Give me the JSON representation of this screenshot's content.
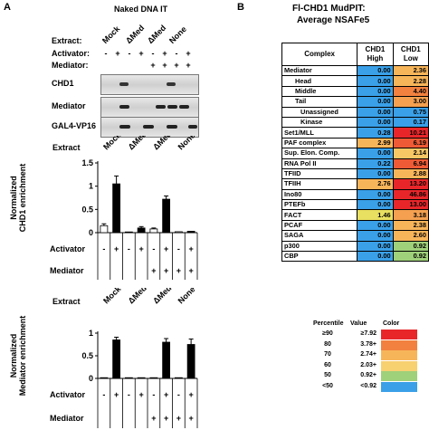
{
  "panel_a": {
    "letter": "A",
    "title": "Naked DNA IT",
    "row_labels": {
      "extract": "Extract:",
      "activator": "Activator:",
      "mediator": "Mediator:"
    },
    "extract_lanes": [
      "Mock",
      "ΔMed",
      "ΔMed",
      "None"
    ],
    "activator_signs": [
      "-",
      "+",
      "-",
      "+",
      "-",
      "+",
      "-",
      "+"
    ],
    "mediator_signs": [
      "",
      "",
      "",
      "",
      "+",
      "+",
      "+",
      "+"
    ],
    "blots": [
      {
        "label": "CHD1"
      },
      {
        "label": "Mediator"
      },
      {
        "label": "GAL4-VP16"
      }
    ]
  },
  "chart_data": [
    {
      "type": "bar",
      "title": "",
      "ylabel": "Normalized CHD1 enrichment",
      "ylim": [
        0,
        1.5
      ],
      "yticks": [
        "0",
        "0.5",
        "1",
        "1.5"
      ],
      "extract_label": "Extract",
      "extract_lanes": [
        "Mock",
        "ΔMed",
        "ΔMed",
        "None"
      ],
      "activator_label": "Activator",
      "mediator_label": "Mediator",
      "activator": [
        "-",
        "+",
        "-",
        "+",
        "-",
        "+",
        "-",
        "+"
      ],
      "mediator": [
        "",
        "",
        "",
        "",
        "+",
        "+",
        "+",
        "+"
      ],
      "values": [
        0.15,
        1.05,
        0.0,
        0.1,
        0.08,
        0.72,
        0.02,
        0.03
      ],
      "errors": [
        0.04,
        0.17,
        0.0,
        0.03,
        0.02,
        0.07,
        0.0,
        0.0
      ],
      "fill": [
        "white",
        "black",
        "white",
        "black",
        "white",
        "black",
        "white",
        "black"
      ]
    },
    {
      "type": "bar",
      "title": "",
      "ylabel": "Normalized Mediator enrichment",
      "ylim": [
        0,
        1.0
      ],
      "yticks": [
        "0",
        "0.5",
        "1"
      ],
      "extract_label": "Extract",
      "extract_lanes": [
        "Mock",
        "ΔMed",
        "ΔMed",
        "None"
      ],
      "activator_label": "Activator",
      "mediator_label": "Mediator",
      "activator": [
        "-",
        "+",
        "-",
        "+",
        "-",
        "+",
        "-",
        "+"
      ],
      "mediator": [
        "",
        "",
        "",
        "",
        "+",
        "+",
        "+",
        "+"
      ],
      "values": [
        0.0,
        0.85,
        0.0,
        0.0,
        0.0,
        0.8,
        0.0,
        0.75
      ],
      "errors": [
        0.0,
        0.06,
        0.0,
        0.0,
        0.0,
        0.08,
        0.0,
        0.12
      ],
      "fill": [
        "white",
        "black",
        "white",
        "black",
        "white",
        "black",
        "white",
        "black"
      ]
    }
  ],
  "panel_b": {
    "letter": "B",
    "title_line1": "Fl-CHD1 MudPIT:",
    "title_line2": "Average NSAFe5",
    "header": {
      "complex": "Complex",
      "high": "CHD1\nHigh",
      "low": "CHD1\nLow"
    },
    "rows": [
      {
        "name": "Mediator",
        "indent": 0,
        "high": "0.00",
        "low": "2.36",
        "high_color": "#3aa0e8",
        "low_color": "#f7b55a"
      },
      {
        "name": "Head",
        "indent": 1,
        "high": "0.00",
        "low": "2.28",
        "high_color": "#3aa0e8",
        "low_color": "#f7b55a"
      },
      {
        "name": "Middle",
        "indent": 1,
        "high": "0.00",
        "low": "4.40",
        "high_color": "#3aa0e8",
        "low_color": "#f2813f"
      },
      {
        "name": "Tail",
        "indent": 1,
        "high": "0.00",
        "low": "3.00",
        "high_color": "#3aa0e8",
        "low_color": "#f4a050"
      },
      {
        "name": "Unassigned",
        "indent": 2,
        "high": "0.00",
        "low": "0.75",
        "high_color": "#3aa0e8",
        "low_color": "#3aa0e8"
      },
      {
        "name": "Kinase",
        "indent": 2,
        "high": "0.00",
        "low": "0.17",
        "high_color": "#3aa0e8",
        "low_color": "#3aa0e8"
      },
      {
        "name": "Set1/MLL",
        "indent": 0,
        "high": "0.28",
        "low": "10.21",
        "high_color": "#3aa0e8",
        "low_color": "#e8262a"
      },
      {
        "name": "PAF complex",
        "indent": 0,
        "high": "2.99",
        "low": "6.19",
        "high_color": "#f7b55a",
        "low_color": "#ee5a35"
      },
      {
        "name": "Sup. Elon. Comp.",
        "indent": 0,
        "high": "0.00",
        "low": "2.14",
        "high_color": "#3aa0e8",
        "low_color": "#f7c765"
      },
      {
        "name": "RNA Pol II",
        "indent": 0,
        "high": "0.22",
        "low": "6.94",
        "high_color": "#3aa0e8",
        "low_color": "#ee5a35"
      },
      {
        "name": "TFIID",
        "indent": 0,
        "high": "0.00",
        "low": "2.88",
        "high_color": "#3aa0e8",
        "low_color": "#f7b55a"
      },
      {
        "name": "TFIIH",
        "indent": 0,
        "high": "2.76",
        "low": "13.20",
        "high_color": "#f7b55a",
        "low_color": "#e8262a"
      },
      {
        "name": "Ino80",
        "indent": 0,
        "high": "0.00",
        "low": "46.86",
        "high_color": "#3aa0e8",
        "low_color": "#e8262a"
      },
      {
        "name": "PTEFb",
        "indent": 0,
        "high": "0.00",
        "low": "13.00",
        "high_color": "#3aa0e8",
        "low_color": "#e8262a"
      },
      {
        "name": "FACT",
        "indent": 0,
        "high": "1.46",
        "low": "3.18",
        "high_color": "#e8e060",
        "low_color": "#f4a050"
      },
      {
        "name": "PCAF",
        "indent": 0,
        "high": "0.00",
        "low": "2.38",
        "high_color": "#3aa0e8",
        "low_color": "#f7b55a"
      },
      {
        "name": "SAGA",
        "indent": 0,
        "high": "0.00",
        "low": "2.60",
        "high_color": "#3aa0e8",
        "low_color": "#f7b55a"
      },
      {
        "name": "p300",
        "indent": 0,
        "high": "0.00",
        "low": "0.92",
        "high_color": "#3aa0e8",
        "low_color": "#9fd07a"
      },
      {
        "name": "CBP",
        "indent": 0,
        "high": "0.00",
        "low": "0.92",
        "high_color": "#3aa0e8",
        "low_color": "#9fd07a"
      }
    ],
    "legend": {
      "header": {
        "percentile": "Percentile",
        "value": "Value",
        "color": "Color"
      },
      "rows": [
        {
          "percentile": "≥90",
          "value": "≥7.92",
          "color": "#e8262a"
        },
        {
          "percentile": "80",
          "value": "3.78+",
          "color": "#f2813f"
        },
        {
          "percentile": "70",
          "value": "2.74+",
          "color": "#f7b55a"
        },
        {
          "percentile": "60",
          "value": "2.03+",
          "color": "#f7d070"
        },
        {
          "percentile": "50",
          "value": "0.92+",
          "color": "#9fd07a"
        },
        {
          "percentile": "<50",
          "value": "<0.92",
          "color": "#3aa0e8"
        }
      ]
    }
  }
}
